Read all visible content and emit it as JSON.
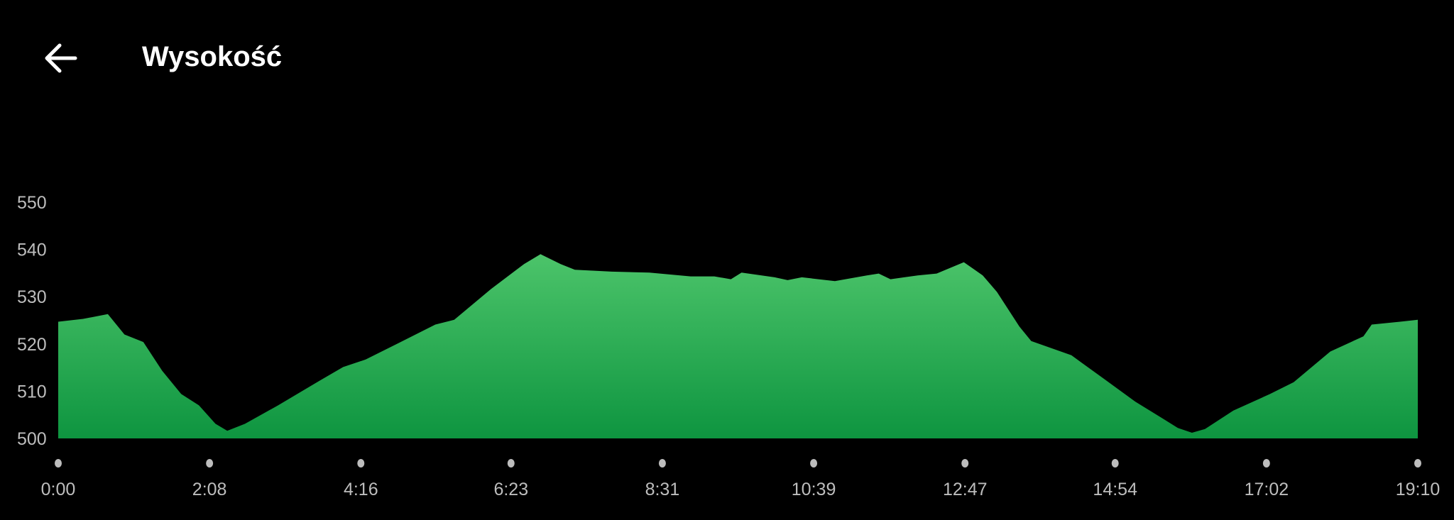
{
  "header": {
    "title": "Wysokość",
    "back_icon": "arrow-left-icon"
  },
  "colors": {
    "background": "#000000",
    "area_top": "#4cc46a",
    "area_bottom": "#0e9540",
    "tick_text": "#bdbdbd",
    "tick_dot": "#bdbdbd"
  },
  "chart_data": {
    "type": "area",
    "title": "Wysokość",
    "xlabel": "",
    "ylabel": "",
    "x_ticks": [
      "0:00",
      "2:08",
      "4:16",
      "6:23",
      "8:31",
      "10:39",
      "12:47",
      "14:54",
      "17:02",
      "19:10"
    ],
    "y_ticks": [
      550,
      540,
      530,
      520,
      510,
      500
    ],
    "xlim": [
      "0:00",
      "19:10"
    ],
    "ylim": [
      500,
      550
    ],
    "grid": false,
    "legend": "none",
    "x": [
      "0:00",
      "0:21",
      "0:42",
      "0:56",
      "1:12",
      "1:28",
      "1:44",
      "1:59",
      "2:13",
      "2:23",
      "2:38",
      "3:06",
      "3:41",
      "4:01",
      "4:20",
      "4:48",
      "5:19",
      "5:35",
      "6:06",
      "6:34",
      "6:48",
      "7:05",
      "7:17",
      "7:48",
      "8:20",
      "8:55",
      "9:15",
      "9:29",
      "9:38",
      "10:06",
      "10:17",
      "10:29",
      "10:57",
      "11:24",
      "11:34",
      "11:44",
      "12:07",
      "12:23",
      "12:46",
      "13:02",
      "13:14",
      "13:33",
      "13:43",
      "14:17",
      "14:44",
      "15:11",
      "15:35",
      "15:47",
      "15:59",
      "16:10",
      "16:34",
      "17:05",
      "17:25",
      "17:56",
      "18:24",
      "18:31",
      "18:55",
      "19:10"
    ],
    "values": [
      524.7,
      525.3,
      526.3,
      522,
      520.4,
      514.3,
      509.4,
      507,
      503.1,
      501.6,
      503.1,
      507,
      512.2,
      515.1,
      516.7,
      520.2,
      524.1,
      525.1,
      531.6,
      536.9,
      539,
      536.9,
      535.7,
      535.3,
      535.1,
      534.3,
      534.3,
      533.7,
      535.1,
      534.1,
      533.5,
      534.1,
      533.3,
      534.5,
      534.9,
      533.7,
      534.5,
      534.9,
      537.3,
      534.5,
      531,
      523.7,
      520.6,
      517.6,
      512.7,
      507.8,
      504.1,
      502.2,
      501.2,
      502,
      505.9,
      509.4,
      511.9,
      518.4,
      521.6,
      524.1,
      524.7,
      525.1
    ]
  }
}
